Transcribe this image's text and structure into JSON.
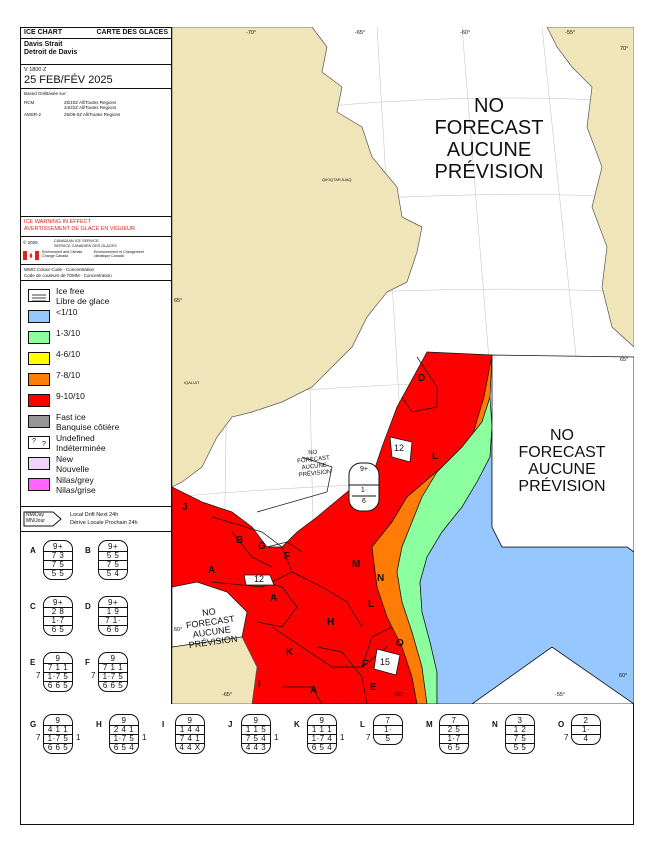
{
  "header": {
    "ice_chart": "ICE CHART",
    "carte": "CARTE DES GLACES",
    "region_en": "Davis Strait",
    "region_fr": "Detroit de Davis",
    "valid_time": "V 1800 Z",
    "date": "25 FEB/FÉV 2025",
    "based_on": "Based On/Basée sur:",
    "sources": [
      {
        "sensor": "RCM",
        "lines": [
          "25/10Z All/Toutes Regions",
          "24/22Z All/Toutes Regions"
        ]
      },
      {
        "sensor": "AMSR-2",
        "lines": [
          "25/06-0Z All/Toutes Regions"
        ]
      }
    ]
  },
  "warning": {
    "en": "ICE WARNING IN EFFECT",
    "fr": "AVERTISSEMENT DE GLACE EN VIGUEUR"
  },
  "credits": {
    "copyright": "© 2025",
    "cis_en": "CANADIAN ICE SERVICE",
    "cis_fr": "SERVICE CANADIEN DES GLACES",
    "eccc_en": "Environment and Climate Change Canada",
    "eccc_fr": "Environnement et Changement climatique Canada"
  },
  "wmo": {
    "en": "WMO Colour Code - Concentration",
    "fr": "Code de couleurs de l'OMM - Concentration"
  },
  "legend": [
    {
      "label": "Ice free\nLibre de glace",
      "color": "#ffffff",
      "pattern": "lines"
    },
    {
      "label": "<1/10",
      "color": "#96c8ff"
    },
    {
      "label": "1-3/10",
      "color": "#8cff9f"
    },
    {
      "label": "4-6/10",
      "color": "#ffff00"
    },
    {
      "label": "7-8/10",
      "color": "#ff7d07"
    },
    {
      "label": "9-10/10",
      "color": "#ff0000"
    },
    {
      "label": "Fast ice\nBanquise côtière",
      "color": "#969696"
    },
    {
      "label": "Undefined\nIndéterminée",
      "color": "#ffffff",
      "pattern": "qmark"
    },
    {
      "label": "New\nNouvelle",
      "color": "#f0d2fa"
    },
    {
      "label": "Nilas/grey\nNilas/grise",
      "color": "#ff64ff"
    }
  ],
  "drift": {
    "box": "NM/Day\nMN/Jour",
    "en": "Local Drift Next 24h",
    "fr": "Dérive Locale Prochain 24h"
  },
  "map": {
    "no_forecast_top": [
      "NO",
      "FORECAST",
      "AUCUNE",
      "PRÉVISION"
    ],
    "no_forecast_right": [
      "NO",
      "FORECAST",
      "AUCUNE",
      "PRÉVISION"
    ],
    "no_forecast_small": [
      "NO",
      "FORECAST",
      "AUCUNE",
      "PRÉVISION"
    ],
    "no_forecast_bottom": [
      "NO",
      "FORECAST",
      "AUCUNE",
      "PRÉVISION"
    ],
    "lon_labels": [
      "-70°",
      "-65°",
      "-60°",
      "-55°"
    ],
    "lat_labels": [
      "70°",
      "65°",
      "60°"
    ],
    "bottom_lon": [
      "-65°",
      "-60°",
      "-55°"
    ],
    "places": [
      "QIKIQTARJUAQ",
      "IQALUIT"
    ],
    "region_letters": [
      "D",
      "L",
      "M",
      "N",
      "L",
      "O",
      "J",
      "B",
      "G",
      "F",
      "A",
      "A",
      "H",
      "K",
      "F",
      "E",
      "A",
      "I"
    ],
    "drift_values": [
      "12",
      "12",
      "15"
    ],
    "map_egg": {
      "top": "9+",
      "bottom": "1·",
      "sub": "6"
    },
    "colors": {
      "red": "#ff0000",
      "orange": "#ff7d07",
      "green": "#8cff9f",
      "blue": "#96c8ff",
      "land": "#efe5b8",
      "sea_white": "#ffffff"
    }
  },
  "eggs_side": [
    {
      "id": "A",
      "top": "9+",
      "rows": [
        "7 3",
        "7 5",
        "5 5"
      ]
    },
    {
      "id": "B",
      "top": "9+",
      "rows": [
        "5 5",
        "7 5",
        "5 4"
      ]
    },
    {
      "id": "C",
      "top": "9+",
      "rows": [
        "2 8",
        "1·7",
        "6 5"
      ]
    },
    {
      "id": "D",
      "top": "9+",
      "rows": [
        "1 9",
        "7 1·",
        "6 6"
      ]
    },
    {
      "id": "E",
      "top": "9",
      "rows": [
        "7 1 1",
        "1·7 5",
        "6 6 5"
      ],
      "left": "7"
    },
    {
      "id": "F",
      "top": "9",
      "rows": [
        "7 1 1",
        "1·7 5",
        "6 6 5"
      ],
      "left": "7"
    }
  ],
  "eggs_bottom": [
    {
      "id": "G",
      "top": "9",
      "rows": [
        "4 1 1",
        "1·7 5",
        "6 6 5"
      ],
      "left": "7",
      "right": "1"
    },
    {
      "id": "H",
      "top": "9",
      "rows": [
        "2 4 1",
        "1·7 5",
        "6 5 4"
      ],
      "right": "1"
    },
    {
      "id": "I",
      "top": "9",
      "rows": [
        "1 4 4",
        "7 4 1",
        "4 4 X"
      ]
    },
    {
      "id": "J",
      "top": "9",
      "rows": [
        "1 1 5",
        "7 5 4",
        "4 4 3"
      ],
      "right": "1"
    },
    {
      "id": "K",
      "top": "9",
      "rows": [
        "1 1 1",
        "1·7 4",
        "6 5 4"
      ],
      "right": "1"
    },
    {
      "id": "L",
      "top": "7",
      "rows": [
        "1·",
        "5"
      ],
      "left": "7"
    },
    {
      "id": "M",
      "top": "7",
      "rows": [
        "2 5",
        "1·7",
        "6 5"
      ]
    },
    {
      "id": "N",
      "top": "3",
      "rows": [
        "1 2",
        "7 5",
        "5 5"
      ]
    },
    {
      "id": "O",
      "top": "2",
      "rows": [
        "1·",
        "4"
      ],
      "left": "7"
    }
  ]
}
